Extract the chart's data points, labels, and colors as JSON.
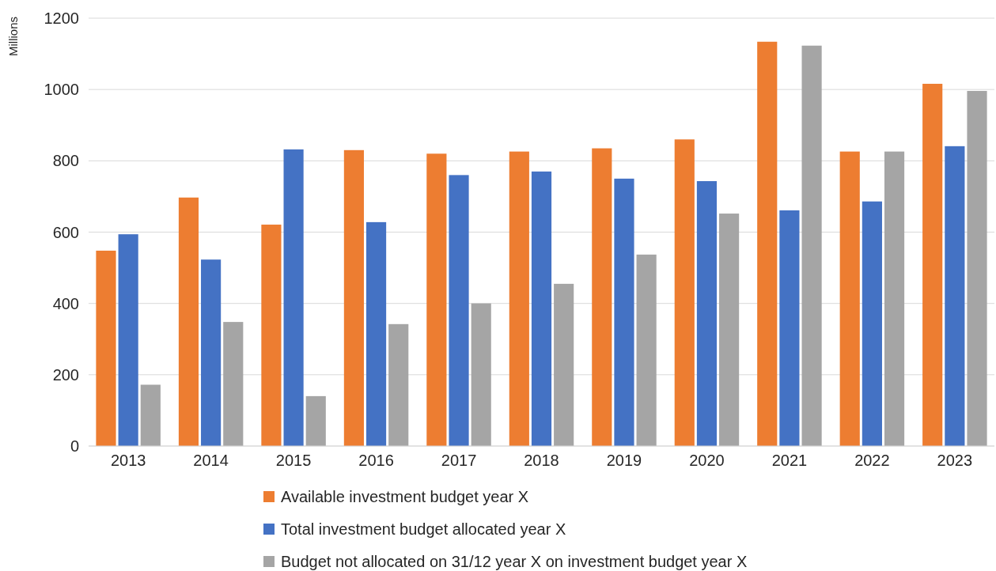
{
  "chart_data": {
    "type": "bar",
    "ylabel": "Millions",
    "categories": [
      "2013",
      "2014",
      "2015",
      "2016",
      "2017",
      "2018",
      "2019",
      "2020",
      "2021",
      "2022",
      "2023"
    ],
    "series": [
      {
        "name": "Available investment budget year X",
        "color": "#ed7d31",
        "values": [
          548,
          697,
          621,
          830,
          820,
          826,
          835,
          860,
          1134,
          826,
          1016
        ]
      },
      {
        "name": "Total investment budget allocated year X",
        "color": "#4472c4",
        "values": [
          594,
          523,
          832,
          628,
          760,
          770,
          750,
          743,
          661,
          686,
          841
        ]
      },
      {
        "name": "Budget not allocated on 31/12 year X on investment budget year X",
        "color": "#a5a5a5",
        "values": [
          172,
          348,
          140,
          342,
          400,
          455,
          537,
          652,
          1123,
          826,
          996
        ]
      }
    ],
    "ylim": [
      0,
      1200
    ],
    "yticks": [
      0,
      200,
      400,
      600,
      800,
      1000,
      1200
    ],
    "grid": "y",
    "legend": "bottom"
  }
}
